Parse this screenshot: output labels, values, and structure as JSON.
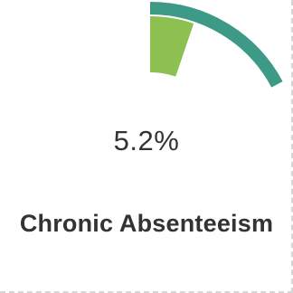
{
  "metric": {
    "value_text": "5.2%",
    "label": "Chronic Absenteeism"
  },
  "chart_data": {
    "type": "gauge",
    "value": 5.2,
    "value_unit": "%",
    "range": [
      0,
      100
    ],
    "colors": {
      "arc_track": "#3d9a86",
      "value_fill": "#8cc152"
    }
  }
}
